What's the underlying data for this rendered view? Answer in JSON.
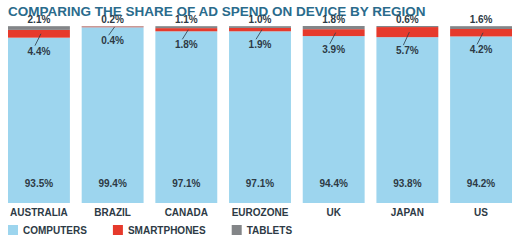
{
  "chart_data": {
    "type": "bar",
    "title": "COMPARING THE SHARE OF AD SPEND ON DEVICE BY REGION",
    "categories": [
      "AUSTRALIA",
      "BRAZIL",
      "CANADA",
      "EUROZONE",
      "UK",
      "JAPAN",
      "US"
    ],
    "series": [
      {
        "name": "COMPUTERS",
        "color": "#9dd5ee",
        "values": [
          93.5,
          99.4,
          97.1,
          97.1,
          94.4,
          93.8,
          94.2
        ],
        "value_labels": [
          "93.5%",
          "99.4%",
          "97.1%",
          "97.1%",
          "94.4%",
          "93.8%",
          "94.2%"
        ]
      },
      {
        "name": "SMARTPHONES",
        "color": "#e63a2c",
        "values": [
          4.4,
          0.4,
          1.8,
          1.9,
          3.9,
          5.7,
          4.2
        ],
        "value_labels": [
          "4.4%",
          "0.4%",
          "1.8%",
          "1.9%",
          "3.9%",
          "5.7%",
          "4.2%"
        ]
      },
      {
        "name": "TABLETS",
        "color": "#838588",
        "values": [
          2.1,
          0.2,
          1.1,
          1.0,
          1.8,
          0.6,
          1.6
        ],
        "value_labels": [
          "2.1%",
          "0.2%",
          "1.1%",
          "1.0%",
          "1.8%",
          "0.6%",
          "1.6%"
        ]
      }
    ],
    "stacked": true,
    "data_labels": true,
    "tick_labels": false,
    "legend": "bottom"
  }
}
